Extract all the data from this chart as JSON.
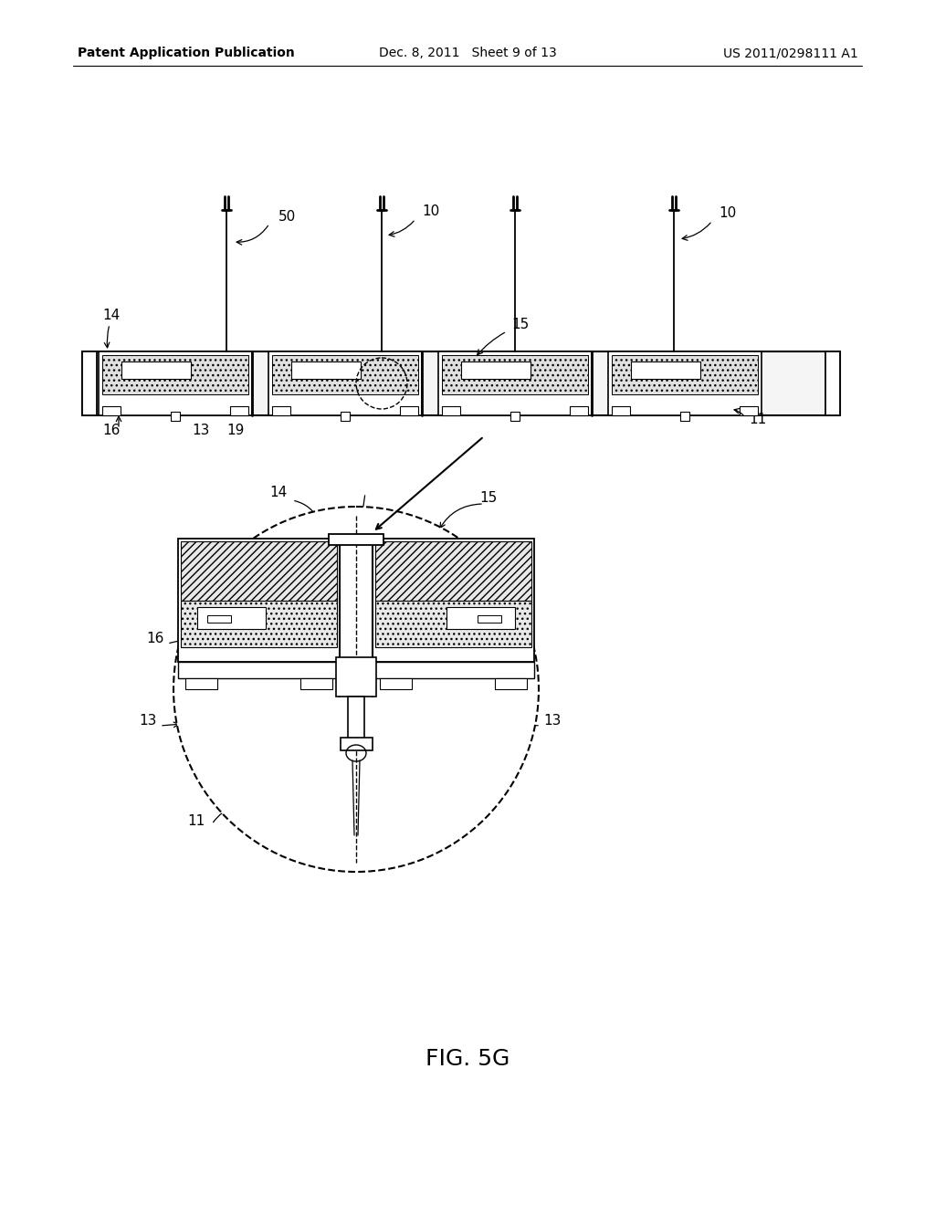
{
  "bg_color": "#ffffff",
  "header_left": "Patent Application Publication",
  "header_mid": "Dec. 8, 2011   Sheet 9 of 13",
  "header_right": "US 2011/0298111 A1",
  "figure_label": "FIG. 5G"
}
